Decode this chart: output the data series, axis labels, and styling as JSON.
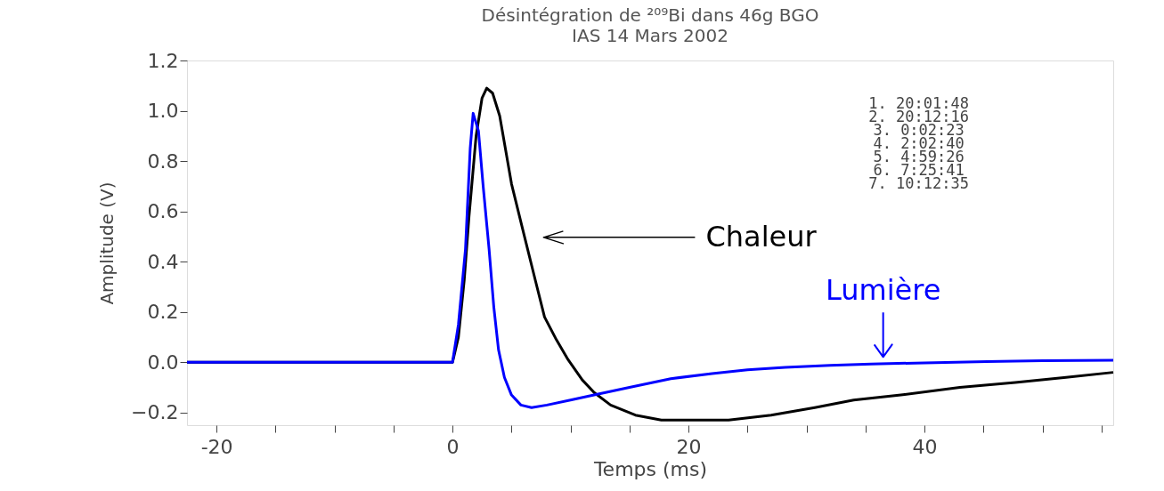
{
  "chart_data": {
    "type": "line",
    "title": "Désintégration de ²⁰⁹Bi dans 46g BGO",
    "subtitle": "IAS 14 Mars 2002",
    "xlabel": "Temps (ms)",
    "ylabel": "Amplitude (V)",
    "xlim": [
      -22.5,
      56
    ],
    "ylim": [
      -0.25,
      1.2
    ],
    "xticks": [
      -20,
      {
        "value": -15,
        "label": null
      },
      {
        "value": -10,
        "label": null
      },
      {
        "value": -5,
        "label": null
      },
      0,
      {
        "value": 5,
        "label": null
      },
      {
        "value": 10,
        "label": null
      },
      {
        "value": 15,
        "label": null
      },
      20,
      {
        "value": 25,
        "label": null
      },
      {
        "value": 30,
        "label": null
      },
      {
        "value": 35,
        "label": null
      },
      40,
      {
        "value": 45,
        "label": null
      },
      {
        "value": 50,
        "label": null
      },
      {
        "value": 55,
        "label": null
      }
    ],
    "yticks": [
      {
        "value": -0.2,
        "label": "−0.2"
      },
      {
        "value": 0,
        "label": "0.0"
      },
      0.2,
      0.4,
      0.6,
      0.8,
      {
        "value": 1.0,
        "label": "1.0"
      },
      1.2
    ],
    "grid": false,
    "line_style": "solid",
    "marker": "none",
    "series": [
      {
        "color": "#000000",
        "x": [
          -22.5,
          -18,
          -14,
          -10,
          -6,
          -2,
          0,
          0.5,
          1,
          1.4,
          2,
          2.5,
          2.9,
          3.4,
          4,
          5,
          6.1,
          7,
          7.8,
          8.8,
          9.8,
          11,
          12,
          13.4,
          15.5,
          17.7,
          20,
          23.4,
          27,
          30.7,
          34,
          38,
          43,
          47.7,
          52,
          56
        ],
        "values": [
          0,
          0,
          0,
          0,
          0,
          0,
          0,
          0.1,
          0.33,
          0.58,
          0.9,
          1.05,
          1.09,
          1.07,
          0.98,
          0.71,
          0.5,
          0.33,
          0.18,
          0.09,
          0.01,
          -0.07,
          -0.12,
          -0.17,
          -0.21,
          -0.23,
          -0.23,
          -0.23,
          -0.21,
          -0.18,
          -0.15,
          -0.13,
          -0.1,
          -0.08,
          -0.06,
          -0.04
        ]
      },
      {
        "color": "#0000ff",
        "x": [
          -22.5,
          -18,
          -14,
          -10,
          -6,
          -2,
          0,
          0.5,
          1.1,
          1.5,
          1.75,
          2.2,
          2.6,
          3.1,
          3.5,
          3.9,
          4.4,
          5,
          5.8,
          6.7,
          8,
          10,
          12,
          15,
          18.5,
          22,
          25,
          28.2,
          32,
          35.5,
          40,
          45.3,
          50,
          56
        ],
        "values": [
          0,
          0,
          0,
          0,
          0,
          0,
          0,
          0.15,
          0.45,
          0.85,
          0.99,
          0.92,
          0.7,
          0.45,
          0.22,
          0.05,
          -0.06,
          -0.13,
          -0.17,
          -0.18,
          -0.17,
          -0.15,
          -0.13,
          -0.1,
          -0.065,
          -0.045,
          -0.03,
          -0.02,
          -0.012,
          -0.007,
          -0.002,
          0.003,
          0.006,
          0.008
        ]
      }
    ],
    "annotations": [
      "Chaleur",
      {
        "text": "Lumière",
        "x": 36.5,
        "y": 0.0
      },
      "1.  20:01:48\n2.  20:12:16\n3.   0:02:23\n4.   2:02:40\n5.   4:59:26\n6.   7:25:41\n7.  10:12:35"
    ]
  }
}
